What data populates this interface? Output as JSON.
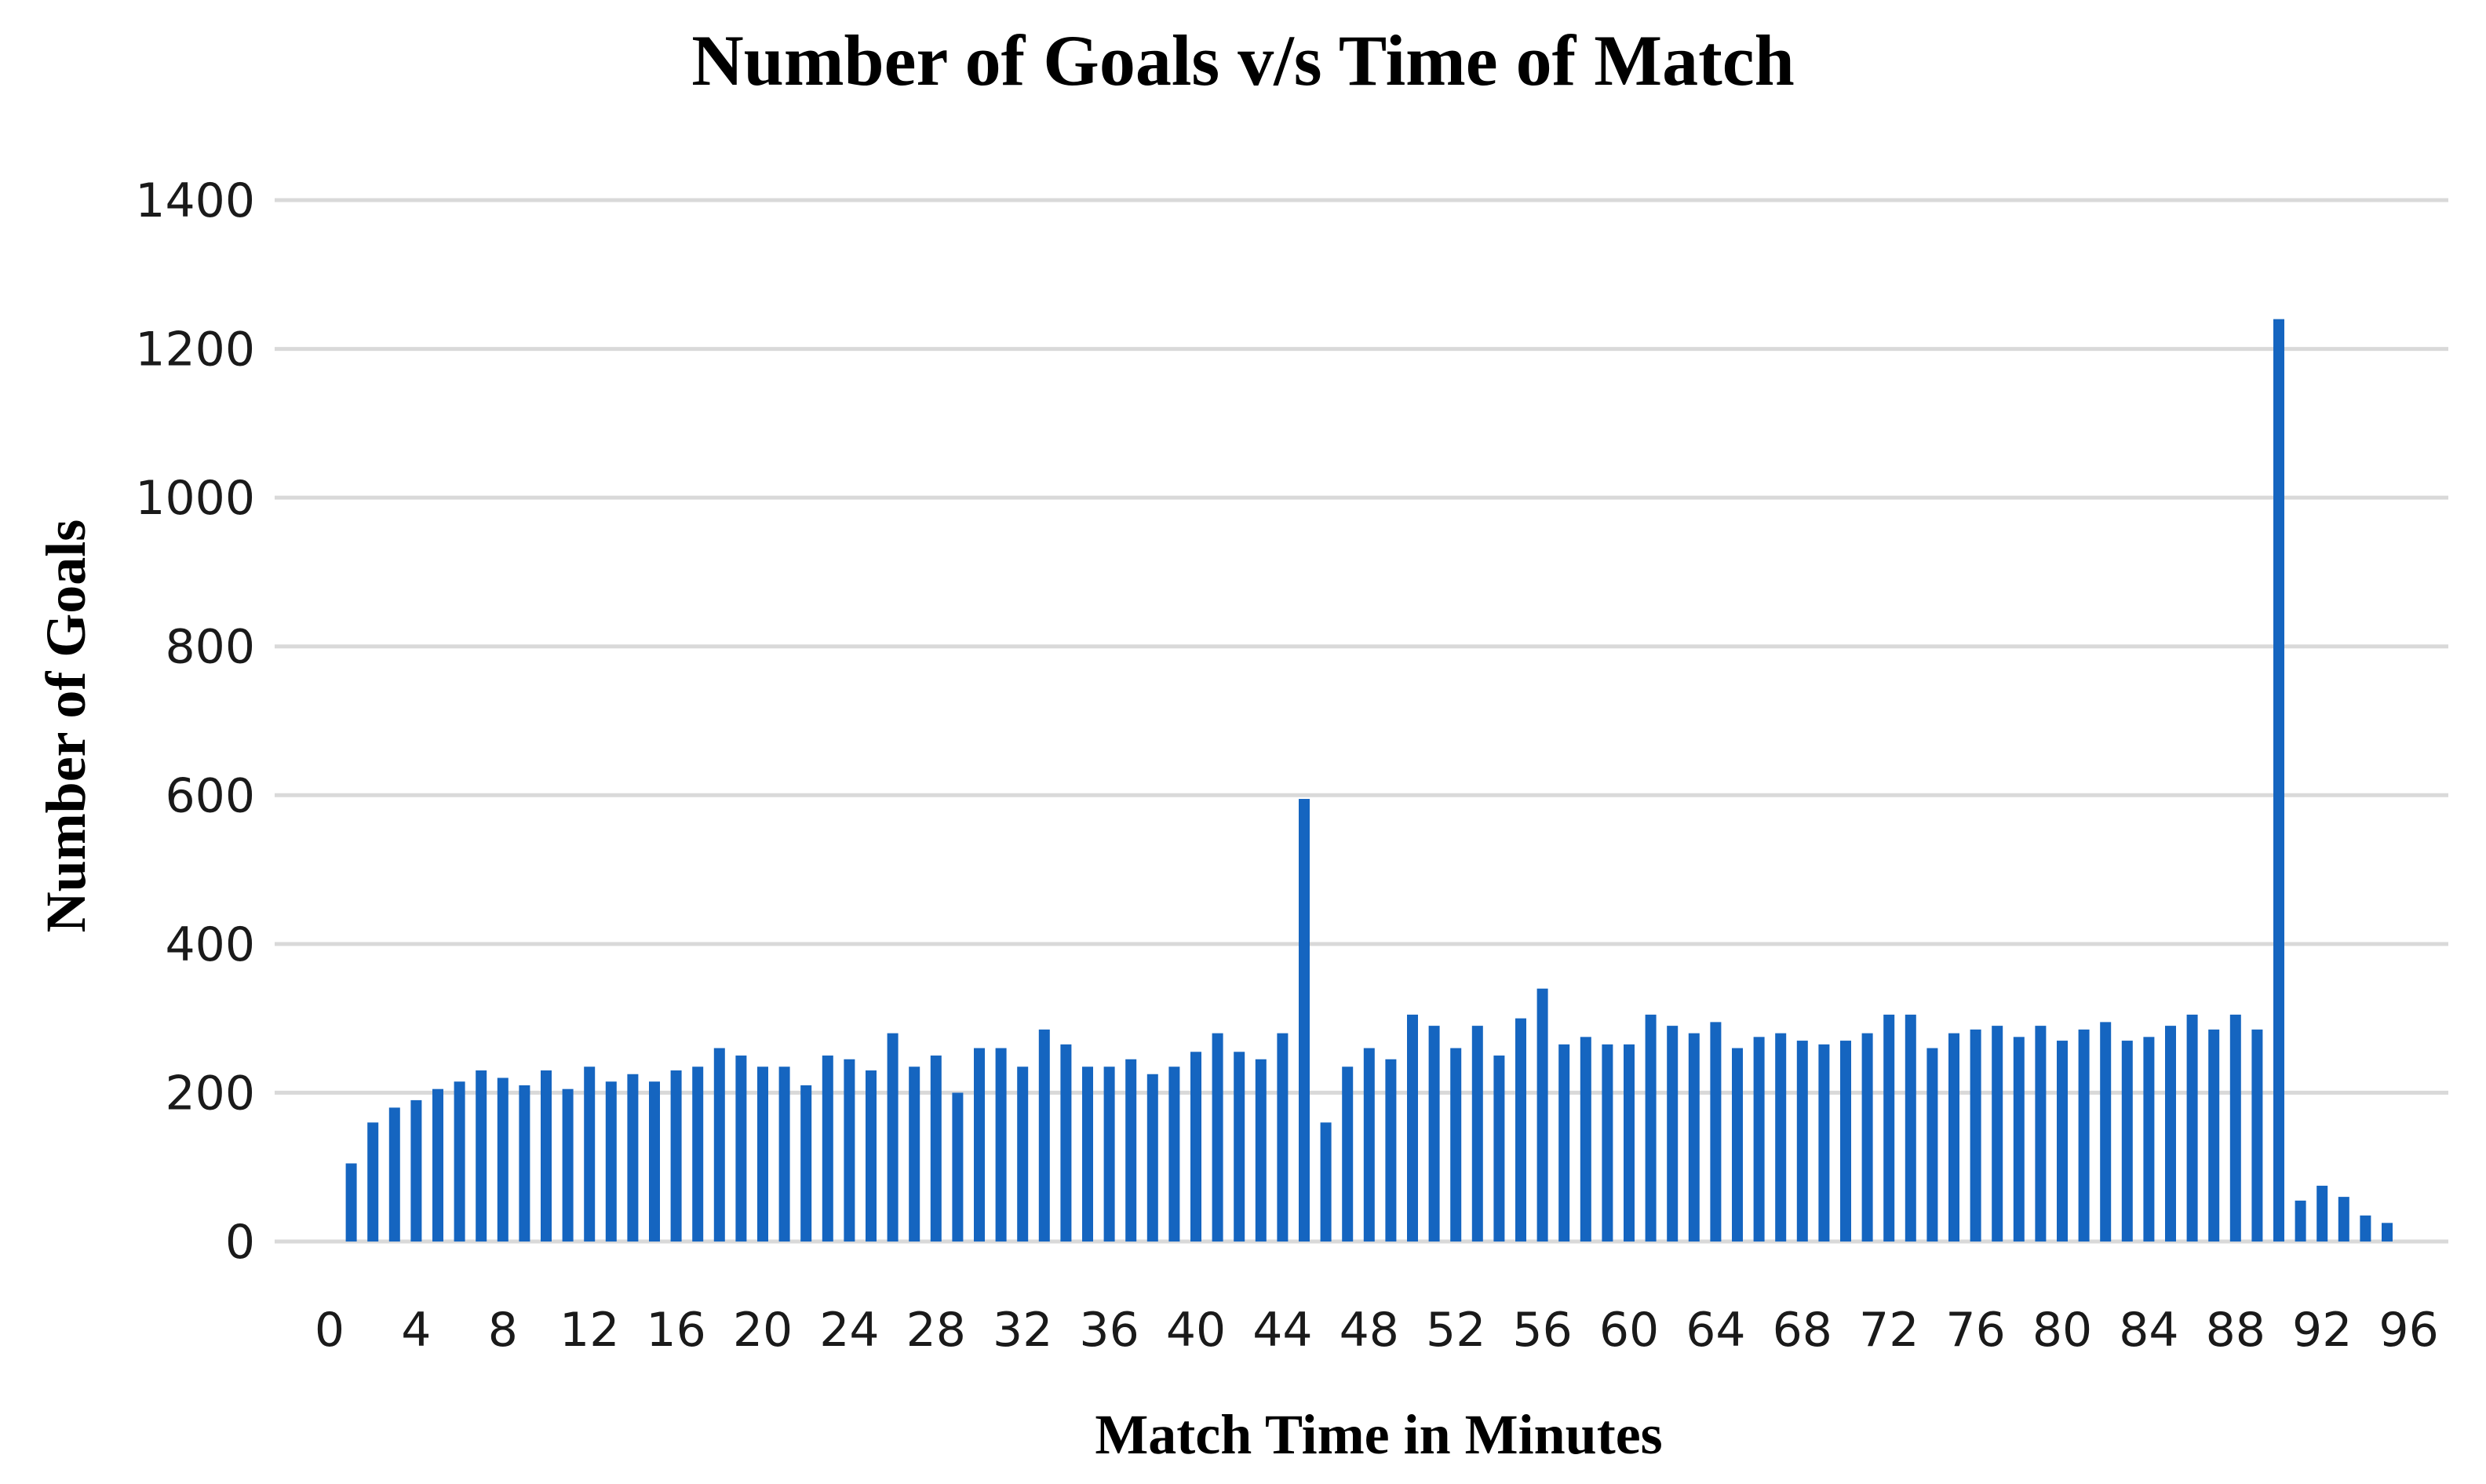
{
  "chart_data": {
    "type": "bar",
    "title": "Number of Goals v/s Time of Match",
    "xlabel": "Match Time in Minutes",
    "ylabel": "Number of Goals",
    "ylim": [
      0,
      1400
    ],
    "yticks": [
      0,
      200,
      400,
      600,
      800,
      1000,
      1200,
      1400
    ],
    "xticks": [
      0,
      4,
      8,
      12,
      16,
      20,
      24,
      28,
      32,
      36,
      40,
      44,
      48,
      52,
      56,
      60,
      64,
      68,
      72,
      76,
      80,
      84,
      88,
      92,
      96
    ],
    "xlim": [
      0,
      96
    ],
    "grid": true,
    "bar_color": "#1565C0",
    "gridline_color": "#D9D9D9",
    "x": [
      1,
      2,
      3,
      4,
      5,
      6,
      7,
      8,
      9,
      10,
      11,
      12,
      13,
      14,
      15,
      16,
      17,
      18,
      19,
      20,
      21,
      22,
      23,
      24,
      25,
      26,
      27,
      28,
      29,
      30,
      31,
      32,
      33,
      34,
      35,
      36,
      37,
      38,
      39,
      40,
      41,
      42,
      43,
      44,
      45,
      46,
      47,
      48,
      49,
      50,
      51,
      52,
      53,
      54,
      55,
      56,
      57,
      58,
      59,
      60,
      61,
      62,
      63,
      64,
      65,
      66,
      67,
      68,
      69,
      70,
      71,
      72,
      73,
      74,
      75,
      76,
      77,
      78,
      79,
      80,
      81,
      82,
      83,
      84,
      85,
      86,
      87,
      88,
      89,
      90,
      91,
      92,
      93,
      94,
      95
    ],
    "values": [
      105,
      160,
      180,
      190,
      205,
      215,
      230,
      220,
      210,
      230,
      205,
      235,
      215,
      225,
      215,
      230,
      235,
      260,
      250,
      235,
      235,
      210,
      250,
      245,
      230,
      280,
      235,
      250,
      200,
      260,
      260,
      235,
      285,
      265,
      235,
      235,
      245,
      225,
      235,
      255,
      280,
      255,
      245,
      280,
      595,
      160,
      235,
      260,
      245,
      305,
      290,
      260,
      290,
      250,
      300,
      340,
      265,
      275,
      265,
      265,
      305,
      290,
      280,
      295,
      260,
      275,
      280,
      270,
      265,
      270,
      280,
      305,
      305,
      260,
      280,
      285,
      290,
      275,
      290,
      270,
      285,
      295,
      270,
      275,
      290,
      305,
      285,
      305,
      285,
      1240,
      55,
      75,
      60,
      35,
      25
    ]
  }
}
